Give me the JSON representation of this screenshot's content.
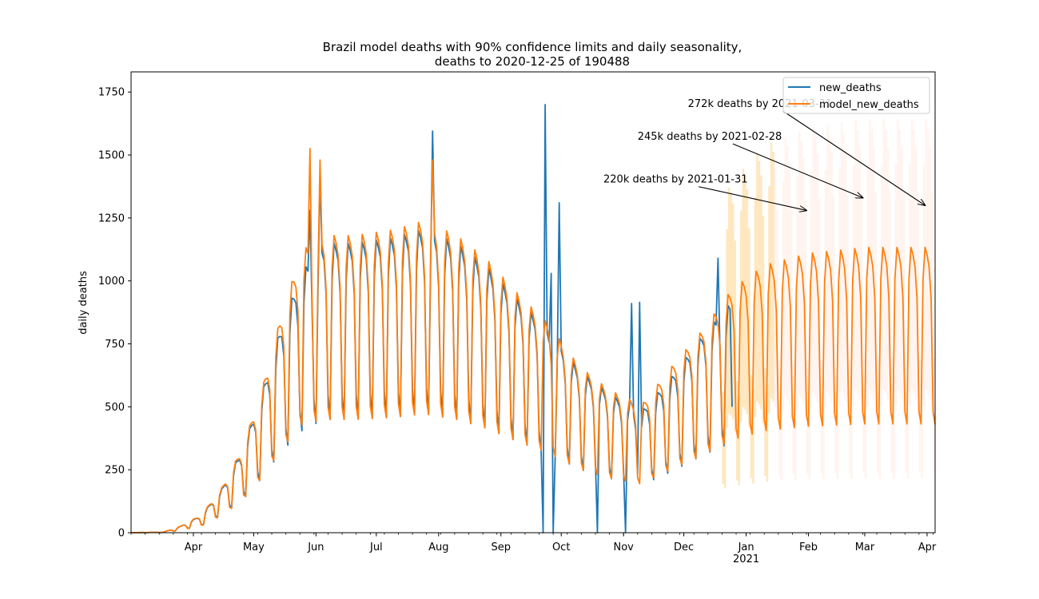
{
  "chart_data": {
    "type": "line",
    "title_line1": "Brazil model deaths with 90% confidence limits and daily seasonality,",
    "title_line2": "deaths to 2020-12-25 of 190488",
    "xlabel": "",
    "ylabel": "daily deaths",
    "ylim": [
      0,
      1830
    ],
    "xlim": [
      "2020-03-01",
      "2021-04-05"
    ],
    "y_ticks": [
      0,
      250,
      500,
      750,
      1000,
      1250,
      1500,
      1750
    ],
    "x_ticks": [
      {
        "date": "2020-04-01",
        "label": "Apr"
      },
      {
        "date": "2020-05-01",
        "label": "May"
      },
      {
        "date": "2020-06-01",
        "label": "Jun"
      },
      {
        "date": "2020-07-01",
        "label": "Jul"
      },
      {
        "date": "2020-08-01",
        "label": "Aug"
      },
      {
        "date": "2020-09-01",
        "label": "Sep"
      },
      {
        "date": "2020-10-01",
        "label": "Oct"
      },
      {
        "date": "2020-11-01",
        "label": "Nov"
      },
      {
        "date": "2020-12-01",
        "label": "Dec"
      },
      {
        "date": "2021-01-01",
        "label": "Jan",
        "sublabel": "2021"
      },
      {
        "date": "2021-02-01",
        "label": "Feb"
      },
      {
        "date": "2021-03-01",
        "label": "Mar"
      },
      {
        "date": "2021-04-01",
        "label": "Apr"
      }
    ],
    "grid": false,
    "legend_position": "top-right",
    "colors": {
      "new_deaths": "#1f77b4",
      "model_new_deaths": "#ff7f0e",
      "band_near": "#ffd48a",
      "band_far": "#ffcbb8"
    },
    "series": [
      {
        "name": "new_deaths",
        "start": "2020-03-01",
        "end": "2020-12-25",
        "weekly_pattern": [
          0.55,
          0.45,
          1.0,
          1.15,
          1.12,
          1.08,
          0.95
        ],
        "level_anchors": [
          [
            "2020-03-01",
            0
          ],
          [
            "2020-03-17",
            2
          ],
          [
            "2020-03-25",
            20
          ],
          [
            "2020-04-05",
            60
          ],
          [
            "2020-04-15",
            150
          ],
          [
            "2020-04-25",
            280
          ],
          [
            "2020-05-05",
            480
          ],
          [
            "2020-05-15",
            720
          ],
          [
            "2020-05-25",
            900
          ],
          [
            "2020-06-05",
            1000
          ],
          [
            "2020-06-20",
            1000
          ],
          [
            "2020-07-10",
            1020
          ],
          [
            "2020-07-25",
            1050
          ],
          [
            "2020-08-10",
            1000
          ],
          [
            "2020-08-25",
            920
          ],
          [
            "2020-09-10",
            800
          ],
          [
            "2020-09-25",
            700
          ],
          [
            "2020-10-10",
            560
          ],
          [
            "2020-10-25",
            480
          ],
          [
            "2020-11-10",
            420
          ],
          [
            "2020-11-25",
            540
          ],
          [
            "2020-12-10",
            680
          ],
          [
            "2020-12-25",
            800
          ]
        ],
        "overrides": [
          [
            "2020-05-29",
            1280
          ],
          [
            "2020-06-03",
            1420
          ],
          [
            "2020-07-29",
            1595
          ],
          [
            "2020-09-22",
            0
          ],
          [
            "2020-09-23",
            1700
          ],
          [
            "2020-09-26",
            1030
          ],
          [
            "2020-09-27",
            0
          ],
          [
            "2020-09-30",
            1310
          ],
          [
            "2020-10-19",
            0
          ],
          [
            "2020-11-02",
            0
          ],
          [
            "2020-11-05",
            910
          ],
          [
            "2020-11-09",
            915
          ],
          [
            "2020-12-18",
            1090
          ],
          [
            "2020-12-25",
            500
          ]
        ]
      },
      {
        "name": "model_new_deaths",
        "start": "2020-03-01",
        "end": "2021-04-05",
        "weekly_pattern": [
          0.5,
          0.45,
          1.05,
          1.18,
          1.15,
          1.1,
          0.97
        ],
        "level_anchors": [
          [
            "2020-03-01",
            0
          ],
          [
            "2020-03-17",
            2
          ],
          [
            "2020-03-25",
            20
          ],
          [
            "2020-04-05",
            60
          ],
          [
            "2020-04-15",
            150
          ],
          [
            "2020-04-25",
            280
          ],
          [
            "2020-05-05",
            480
          ],
          [
            "2020-05-15",
            740
          ],
          [
            "2020-05-25",
            950
          ],
          [
            "2020-06-05",
            1000
          ],
          [
            "2020-06-20",
            1000
          ],
          [
            "2020-07-10",
            1020
          ],
          [
            "2020-07-25",
            1050
          ],
          [
            "2020-08-10",
            1000
          ],
          [
            "2020-08-25",
            920
          ],
          [
            "2020-09-10",
            800
          ],
          [
            "2020-09-25",
            700
          ],
          [
            "2020-10-10",
            560
          ],
          [
            "2020-10-25",
            480
          ],
          [
            "2020-11-10",
            430
          ],
          [
            "2020-11-25",
            560
          ],
          [
            "2020-12-10",
            680
          ],
          [
            "2020-12-25",
            820
          ],
          [
            "2021-01-10",
            900
          ],
          [
            "2021-02-01",
            940
          ],
          [
            "2021-03-01",
            960
          ],
          [
            "2021-04-05",
            960
          ]
        ],
        "overrides": [
          [
            "2020-05-29",
            1525
          ],
          [
            "2020-06-03",
            1480
          ],
          [
            "2020-07-29",
            1480
          ],
          [
            "2021-04-05",
            430
          ]
        ]
      }
    ],
    "confidence_band": {
      "start": "2020-12-20",
      "end": "2021-04-05",
      "near_until": "2021-01-15",
      "lower_ratio": 0.5,
      "upper_ratio": 1.45
    },
    "annotations": [
      {
        "text": "220k deaths by 2021-01-31",
        "text_at": [
          "2020-10-22",
          1390
        ],
        "arrow_to": [
          "2021-01-31",
          1280
        ]
      },
      {
        "text": "245k deaths by 2021-02-28",
        "text_at": [
          "2020-11-08",
          1560
        ],
        "arrow_to": [
          "2021-02-28",
          1330
        ]
      },
      {
        "text": "272k deaths by 2021-03-31",
        "text_at": [
          "2020-12-03",
          1690
        ],
        "arrow_to": [
          "2021-03-31",
          1300
        ]
      }
    ]
  }
}
